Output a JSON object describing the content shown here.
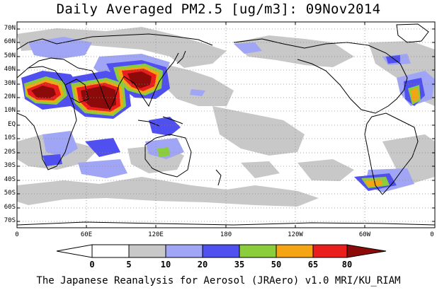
{
  "title": "Daily Averaged PM2.5 [ug/m3]: 09Nov2014",
  "credit": "The Japanese Reanalysis for Aerosol (JRAero) v1.0 MRI/KU_RIAM",
  "lat_labels": [
    "70N",
    "60N",
    "50N",
    "40N",
    "30N",
    "20N",
    "10N",
    "EQ",
    "10S",
    "20S",
    "30S",
    "40S",
    "50S",
    "60S",
    "70S"
  ],
  "lon_labels": [
    "0",
    "60E",
    "120E",
    "180",
    "120W",
    "60W",
    "0"
  ],
  "colorbar": {
    "thresholds": [
      "0",
      "5",
      "10",
      "20",
      "35",
      "50",
      "65",
      "80"
    ],
    "colors": [
      "#ffffff",
      "#c8c8c8",
      "#a0a6f5",
      "#5050f0",
      "#8ccd3c",
      "#f5a514",
      "#eb1e1e",
      "#8c0a0a"
    ]
  },
  "colors": {
    "ocean": "#ffffff",
    "coast": "#000000",
    "grid": "#8a8a8a"
  }
}
